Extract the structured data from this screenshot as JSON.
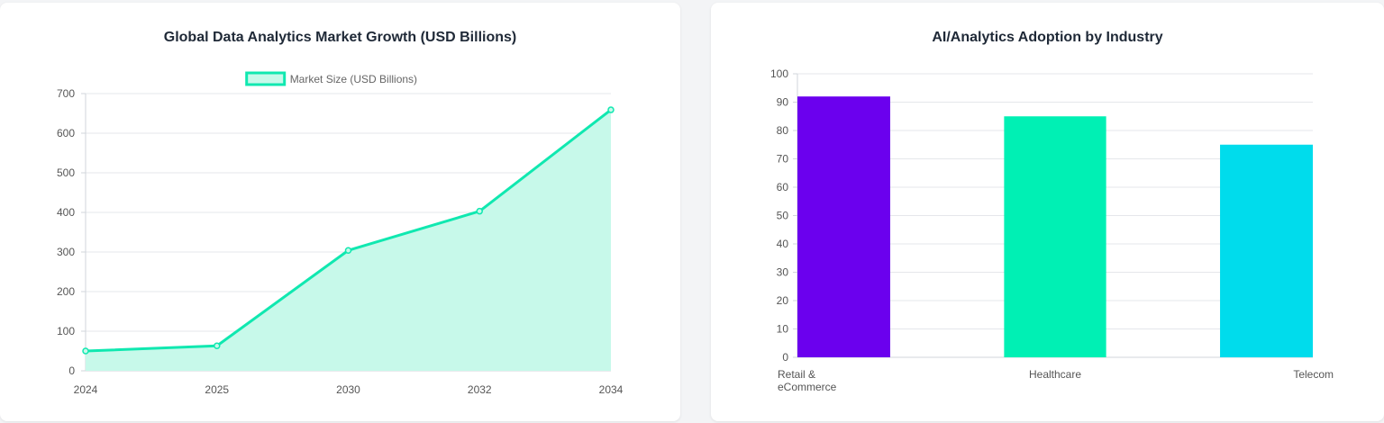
{
  "colors": {
    "line": "#10e8b0",
    "area_fill": "#c7f9ea",
    "bar_retail": "#6b00ee",
    "bar_healthcare": "#00f0b4",
    "bar_telecom": "#00dcec"
  },
  "chart_data": [
    {
      "type": "area",
      "title": "Global Data Analytics Market Growth (USD Billions)",
      "x": [
        "2024",
        "2025",
        "2030",
        "2032",
        "2034"
      ],
      "series": [
        {
          "name": "Market Size (USD Billions)",
          "values": [
            50,
            63,
            304,
            403,
            659
          ]
        }
      ],
      "ylim": [
        0,
        700
      ],
      "yticks": [
        0,
        100,
        200,
        300,
        400,
        500,
        600,
        700
      ],
      "grid": true,
      "legend": "top"
    },
    {
      "type": "bar",
      "title": "AI/Analytics Adoption by Industry",
      "categories": [
        [
          "Retail &",
          "eCommerce"
        ],
        [
          "Healthcare"
        ],
        [
          "Telecom"
        ]
      ],
      "values": [
        92,
        85,
        75
      ],
      "ylim": [
        0,
        100
      ],
      "yticks": [
        0,
        10,
        20,
        30,
        40,
        50,
        60,
        70,
        80,
        90,
        100
      ],
      "grid": true
    }
  ]
}
